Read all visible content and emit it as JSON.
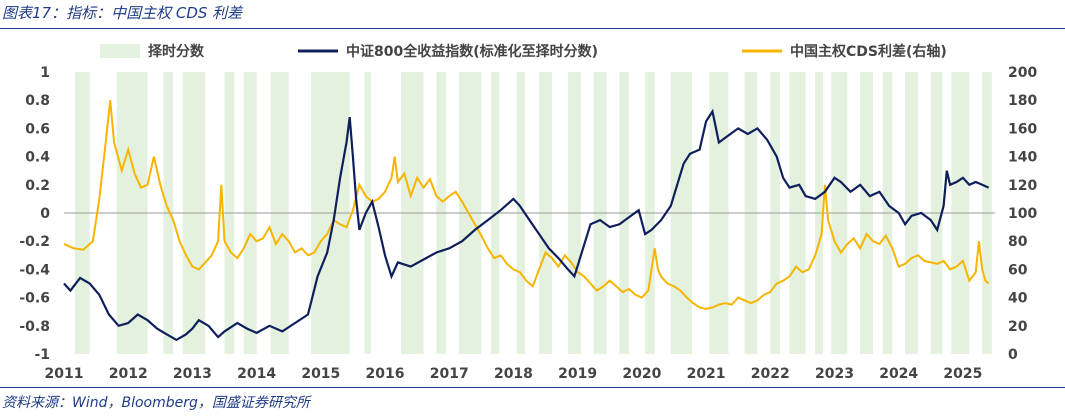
{
  "title": "图表17：指标：中国主权 CDS 利差",
  "source": "资料来源：Wind，Bloomberg，国盛证券研究所",
  "colors": {
    "score_fill": "#e4f1df",
    "index_line": "#0f1f5c",
    "cds_line": "#f7b500",
    "title": "#1f3c88"
  },
  "chart_data": {
    "type": "line",
    "title": "",
    "legend": [
      {
        "name": "择时分数",
        "style": "area"
      },
      {
        "name": "中证800全收益指数(标准化至择时分数)",
        "style": "line"
      },
      {
        "name": "中国主权CDS利差(右轴)",
        "style": "line"
      }
    ],
    "legend_placement": "top",
    "x_tick_labels": [
      "2011",
      "2012",
      "2013",
      "2014",
      "2015",
      "2016",
      "2017",
      "2018",
      "2019",
      "2020",
      "2021",
      "2022",
      "2023",
      "2024",
      "2025"
    ],
    "x_range": [
      2011.0,
      2025.5
    ],
    "y_left": {
      "range": [
        -1,
        1
      ],
      "ticks": [
        "1",
        "0.8",
        "0.6",
        "0.4",
        "0.2",
        "0",
        "-0.2",
        "-0.4",
        "-0.6",
        "-0.8",
        "-1"
      ]
    },
    "y_right": {
      "range": [
        0,
        200
      ],
      "ticks": [
        "200",
        "180",
        "160",
        "140",
        "120",
        "100",
        "80",
        "60",
        "40",
        "20",
        "0"
      ]
    },
    "grid": false,
    "series": [
      {
        "name": "中证800全收益指数(标准化至择时分数)",
        "axis": "left",
        "points": [
          [
            2011.0,
            -0.5
          ],
          [
            2011.1,
            -0.55
          ],
          [
            2011.25,
            -0.46
          ],
          [
            2011.4,
            -0.5
          ],
          [
            2011.55,
            -0.58
          ],
          [
            2011.7,
            -0.72
          ],
          [
            2011.85,
            -0.8
          ],
          [
            2012.0,
            -0.78
          ],
          [
            2012.15,
            -0.72
          ],
          [
            2012.3,
            -0.76
          ],
          [
            2012.45,
            -0.82
          ],
          [
            2012.6,
            -0.86
          ],
          [
            2012.75,
            -0.9
          ],
          [
            2012.9,
            -0.86
          ],
          [
            2013.0,
            -0.82
          ],
          [
            2013.1,
            -0.76
          ],
          [
            2013.25,
            -0.8
          ],
          [
            2013.4,
            -0.88
          ],
          [
            2013.5,
            -0.84
          ],
          [
            2013.7,
            -0.78
          ],
          [
            2013.85,
            -0.82
          ],
          [
            2014.0,
            -0.85
          ],
          [
            2014.2,
            -0.8
          ],
          [
            2014.4,
            -0.84
          ],
          [
            2014.6,
            -0.78
          ],
          [
            2014.8,
            -0.72
          ],
          [
            2014.95,
            -0.45
          ],
          [
            2015.1,
            -0.28
          ],
          [
            2015.2,
            -0.05
          ],
          [
            2015.3,
            0.25
          ],
          [
            2015.4,
            0.5
          ],
          [
            2015.45,
            0.68
          ],
          [
            2015.5,
            0.4
          ],
          [
            2015.55,
            0.1
          ],
          [
            2015.6,
            -0.12
          ],
          [
            2015.7,
            0.0
          ],
          [
            2015.8,
            0.08
          ],
          [
            2015.9,
            -0.1
          ],
          [
            2016.0,
            -0.3
          ],
          [
            2016.1,
            -0.45
          ],
          [
            2016.2,
            -0.35
          ],
          [
            2016.4,
            -0.38
          ],
          [
            2016.6,
            -0.33
          ],
          [
            2016.8,
            -0.28
          ],
          [
            2017.0,
            -0.25
          ],
          [
            2017.2,
            -0.2
          ],
          [
            2017.4,
            -0.12
          ],
          [
            2017.6,
            -0.05
          ],
          [
            2017.8,
            0.02
          ],
          [
            2018.0,
            0.1
          ],
          [
            2018.1,
            0.05
          ],
          [
            2018.25,
            -0.05
          ],
          [
            2018.4,
            -0.15
          ],
          [
            2018.55,
            -0.25
          ],
          [
            2018.7,
            -0.32
          ],
          [
            2018.85,
            -0.4
          ],
          [
            2018.95,
            -0.45
          ],
          [
            2019.05,
            -0.3
          ],
          [
            2019.2,
            -0.08
          ],
          [
            2019.35,
            -0.05
          ],
          [
            2019.5,
            -0.1
          ],
          [
            2019.65,
            -0.08
          ],
          [
            2019.8,
            -0.03
          ],
          [
            2019.95,
            0.02
          ],
          [
            2020.05,
            -0.15
          ],
          [
            2020.15,
            -0.12
          ],
          [
            2020.3,
            -0.05
          ],
          [
            2020.45,
            0.05
          ],
          [
            2020.55,
            0.2
          ],
          [
            2020.65,
            0.35
          ],
          [
            2020.75,
            0.42
          ],
          [
            2020.9,
            0.45
          ],
          [
            2021.0,
            0.65
          ],
          [
            2021.1,
            0.72
          ],
          [
            2021.2,
            0.5
          ],
          [
            2021.35,
            0.55
          ],
          [
            2021.5,
            0.6
          ],
          [
            2021.65,
            0.56
          ],
          [
            2021.8,
            0.6
          ],
          [
            2021.95,
            0.52
          ],
          [
            2022.1,
            0.4
          ],
          [
            2022.2,
            0.25
          ],
          [
            2022.3,
            0.18
          ],
          [
            2022.45,
            0.2
          ],
          [
            2022.55,
            0.12
          ],
          [
            2022.7,
            0.1
          ],
          [
            2022.85,
            0.15
          ],
          [
            2023.0,
            0.25
          ],
          [
            2023.1,
            0.22
          ],
          [
            2023.25,
            0.15
          ],
          [
            2023.4,
            0.2
          ],
          [
            2023.55,
            0.12
          ],
          [
            2023.7,
            0.15
          ],
          [
            2023.85,
            0.05
          ],
          [
            2024.0,
            0.0
          ],
          [
            2024.1,
            -0.08
          ],
          [
            2024.2,
            -0.02
          ],
          [
            2024.35,
            0.0
          ],
          [
            2024.5,
            -0.05
          ],
          [
            2024.6,
            -0.12
          ],
          [
            2024.7,
            0.05
          ],
          [
            2024.75,
            0.3
          ],
          [
            2024.8,
            0.2
          ],
          [
            2024.9,
            0.22
          ],
          [
            2025.0,
            0.25
          ],
          [
            2025.1,
            0.2
          ],
          [
            2025.2,
            0.22
          ],
          [
            2025.3,
            0.2
          ],
          [
            2025.4,
            0.18
          ]
        ]
      },
      {
        "name": "中国主权CDS利差(右轴)",
        "axis": "right",
        "points": [
          [
            2011.0,
            78
          ],
          [
            2011.15,
            75
          ],
          [
            2011.3,
            74
          ],
          [
            2011.45,
            80
          ],
          [
            2011.55,
            110
          ],
          [
            2011.65,
            150
          ],
          [
            2011.72,
            180
          ],
          [
            2011.78,
            150
          ],
          [
            2011.9,
            130
          ],
          [
            2012.0,
            145
          ],
          [
            2012.1,
            128
          ],
          [
            2012.2,
            118
          ],
          [
            2012.3,
            120
          ],
          [
            2012.4,
            140
          ],
          [
            2012.5,
            120
          ],
          [
            2012.6,
            105
          ],
          [
            2012.7,
            95
          ],
          [
            2012.8,
            80
          ],
          [
            2012.9,
            70
          ],
          [
            2013.0,
            62
          ],
          [
            2013.1,
            60
          ],
          [
            2013.2,
            65
          ],
          [
            2013.3,
            70
          ],
          [
            2013.4,
            80
          ],
          [
            2013.45,
            120
          ],
          [
            2013.5,
            80
          ],
          [
            2013.6,
            72
          ],
          [
            2013.7,
            68
          ],
          [
            2013.8,
            75
          ],
          [
            2013.9,
            85
          ],
          [
            2014.0,
            80
          ],
          [
            2014.1,
            82
          ],
          [
            2014.2,
            90
          ],
          [
            2014.3,
            78
          ],
          [
            2014.4,
            85
          ],
          [
            2014.5,
            80
          ],
          [
            2014.6,
            72
          ],
          [
            2014.7,
            75
          ],
          [
            2014.8,
            70
          ],
          [
            2014.9,
            72
          ],
          [
            2015.0,
            80
          ],
          [
            2015.1,
            85
          ],
          [
            2015.2,
            95
          ],
          [
            2015.3,
            92
          ],
          [
            2015.4,
            90
          ],
          [
            2015.5,
            102
          ],
          [
            2015.6,
            120
          ],
          [
            2015.7,
            112
          ],
          [
            2015.8,
            108
          ],
          [
            2015.9,
            110
          ],
          [
            2016.0,
            115
          ],
          [
            2016.1,
            125
          ],
          [
            2016.15,
            140
          ],
          [
            2016.2,
            122
          ],
          [
            2016.3,
            128
          ],
          [
            2016.4,
            112
          ],
          [
            2016.5,
            125
          ],
          [
            2016.6,
            118
          ],
          [
            2016.7,
            124
          ],
          [
            2016.8,
            112
          ],
          [
            2016.9,
            108
          ],
          [
            2017.0,
            112
          ],
          [
            2017.1,
            115
          ],
          [
            2017.2,
            108
          ],
          [
            2017.3,
            100
          ],
          [
            2017.4,
            92
          ],
          [
            2017.5,
            84
          ],
          [
            2017.6,
            75
          ],
          [
            2017.7,
            68
          ],
          [
            2017.8,
            70
          ],
          [
            2017.9,
            64
          ],
          [
            2018.0,
            60
          ],
          [
            2018.1,
            58
          ],
          [
            2018.2,
            52
          ],
          [
            2018.3,
            48
          ],
          [
            2018.4,
            60
          ],
          [
            2018.5,
            72
          ],
          [
            2018.6,
            68
          ],
          [
            2018.7,
            62
          ],
          [
            2018.8,
            70
          ],
          [
            2018.9,
            65
          ],
          [
            2019.0,
            58
          ],
          [
            2019.1,
            55
          ],
          [
            2019.2,
            50
          ],
          [
            2019.3,
            45
          ],
          [
            2019.4,
            48
          ],
          [
            2019.5,
            52
          ],
          [
            2019.6,
            48
          ],
          [
            2019.7,
            44
          ],
          [
            2019.8,
            46
          ],
          [
            2019.9,
            42
          ],
          [
            2020.0,
            40
          ],
          [
            2020.1,
            45
          ],
          [
            2020.2,
            75
          ],
          [
            2020.25,
            60
          ],
          [
            2020.3,
            55
          ],
          [
            2020.4,
            50
          ],
          [
            2020.5,
            48
          ],
          [
            2020.6,
            45
          ],
          [
            2020.7,
            40
          ],
          [
            2020.8,
            36
          ],
          [
            2020.9,
            33
          ],
          [
            2021.0,
            32
          ],
          [
            2021.1,
            33
          ],
          [
            2021.2,
            35
          ],
          [
            2021.3,
            36
          ],
          [
            2021.4,
            35
          ],
          [
            2021.5,
            40
          ],
          [
            2021.6,
            38
          ],
          [
            2021.7,
            36
          ],
          [
            2021.8,
            38
          ],
          [
            2021.9,
            42
          ],
          [
            2022.0,
            44
          ],
          [
            2022.1,
            50
          ],
          [
            2022.2,
            52
          ],
          [
            2022.3,
            55
          ],
          [
            2022.4,
            62
          ],
          [
            2022.5,
            58
          ],
          [
            2022.6,
            60
          ],
          [
            2022.7,
            70
          ],
          [
            2022.8,
            85
          ],
          [
            2022.85,
            120
          ],
          [
            2022.9,
            95
          ],
          [
            2023.0,
            80
          ],
          [
            2023.1,
            72
          ],
          [
            2023.2,
            78
          ],
          [
            2023.3,
            82
          ],
          [
            2023.4,
            75
          ],
          [
            2023.5,
            85
          ],
          [
            2023.6,
            80
          ],
          [
            2023.7,
            78
          ],
          [
            2023.8,
            84
          ],
          [
            2023.9,
            75
          ],
          [
            2024.0,
            62
          ],
          [
            2024.1,
            64
          ],
          [
            2024.2,
            68
          ],
          [
            2024.3,
            70
          ],
          [
            2024.4,
            66
          ],
          [
            2024.5,
            65
          ],
          [
            2024.6,
            64
          ],
          [
            2024.7,
            66
          ],
          [
            2024.8,
            60
          ],
          [
            2024.9,
            62
          ],
          [
            2025.0,
            66
          ],
          [
            2025.1,
            52
          ],
          [
            2025.2,
            58
          ],
          [
            2025.25,
            80
          ],
          [
            2025.3,
            60
          ],
          [
            2025.35,
            52
          ],
          [
            2025.4,
            50
          ]
        ]
      }
    ],
    "score_intervals": [
      [
        2011.17,
        2011.4
      ],
      [
        2011.82,
        2012.3
      ],
      [
        2012.55,
        2012.7
      ],
      [
        2012.85,
        2013.2
      ],
      [
        2013.5,
        2013.65
      ],
      [
        2013.8,
        2014.0
      ],
      [
        2014.22,
        2014.5
      ],
      [
        2014.85,
        2015.45
      ],
      [
        2015.68,
        2015.78
      ],
      [
        2016.25,
        2016.6
      ],
      [
        2016.8,
        2016.95
      ],
      [
        2017.15,
        2017.5
      ],
      [
        2017.65,
        2017.78
      ],
      [
        2018.05,
        2018.18
      ],
      [
        2018.4,
        2018.6
      ],
      [
        2018.85,
        2019.05
      ],
      [
        2019.25,
        2019.45
      ],
      [
        2019.65,
        2019.8
      ],
      [
        2020.05,
        2020.2
      ],
      [
        2020.45,
        2020.78
      ],
      [
        2021.05,
        2021.35
      ],
      [
        2021.6,
        2021.8
      ],
      [
        2022.0,
        2022.15
      ],
      [
        2022.3,
        2022.55
      ],
      [
        2022.7,
        2022.82
      ],
      [
        2022.95,
        2023.2
      ],
      [
        2023.4,
        2023.6
      ],
      [
        2023.75,
        2023.9
      ],
      [
        2024.1,
        2024.3
      ],
      [
        2024.5,
        2024.68
      ],
      [
        2024.82,
        2025.1
      ],
      [
        2025.3,
        2025.45
      ]
    ]
  }
}
